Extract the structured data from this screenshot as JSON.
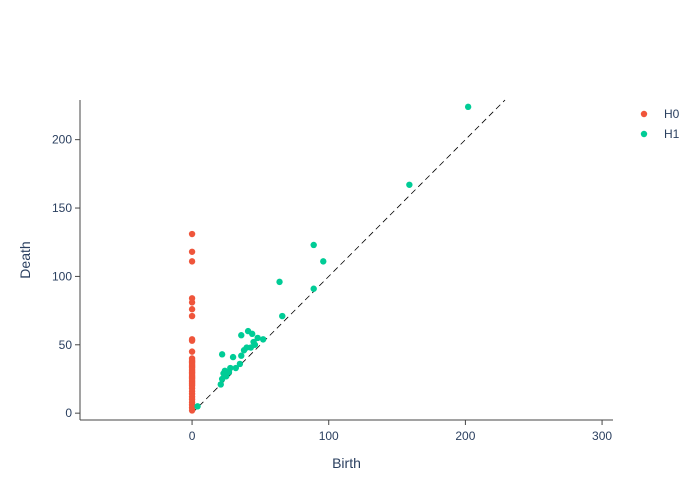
{
  "chart_data": {
    "type": "scatter",
    "title": "",
    "xlabel": "Birth",
    "ylabel": "Death",
    "xlim": [
      -82,
      308
    ],
    "ylim": [
      -5,
      229
    ],
    "x_ticks": [
      0,
      100,
      200,
      300
    ],
    "y_ticks": [
      0,
      50,
      100,
      150,
      200
    ],
    "x_tick_labels": [
      "0",
      "100",
      "200",
      "300"
    ],
    "y_tick_labels": [
      "0",
      "50",
      "100",
      "150",
      "200"
    ],
    "grid": false,
    "legend_position": "top-right",
    "diagonal": {
      "from": [
        0,
        0
      ],
      "to": [
        229,
        229
      ],
      "style": "dashed",
      "color": "#000000"
    },
    "series": [
      {
        "name": "H0",
        "color": "#EF553B",
        "x": [
          0,
          0,
          0,
          0,
          0,
          0,
          0,
          0,
          0,
          0,
          0,
          0,
          0,
          0,
          0,
          0,
          0,
          0,
          0,
          0,
          0,
          0,
          0,
          0,
          0,
          0,
          0,
          0,
          0,
          0,
          0,
          0,
          0,
          0,
          0,
          0,
          0,
          0,
          0,
          0
        ],
        "y": [
          131,
          118,
          111,
          84,
          81,
          76,
          71,
          54,
          53,
          45,
          40,
          39,
          38,
          37,
          36,
          35,
          34,
          33,
          32,
          31,
          30,
          29,
          28,
          27,
          26,
          25,
          24,
          23,
          22,
          21,
          20,
          18,
          16,
          14,
          12,
          10,
          8,
          6,
          4,
          2
        ]
      },
      {
        "name": "H1",
        "color": "#00CC96",
        "x": [
          202,
          159,
          89,
          96,
          64,
          89,
          66,
          36,
          41,
          44,
          22,
          48,
          52,
          45,
          30,
          38,
          43,
          46,
          40,
          36,
          35,
          28,
          32,
          24,
          27,
          23,
          25,
          22,
          21,
          4
        ],
        "y": [
          224,
          167,
          123,
          111,
          96,
          91,
          71,
          57,
          60,
          58,
          43,
          55,
          54,
          52,
          41,
          46,
          48,
          50,
          48,
          42,
          36,
          33,
          33,
          31,
          30,
          29,
          27,
          25,
          21,
          5
        ]
      }
    ]
  }
}
